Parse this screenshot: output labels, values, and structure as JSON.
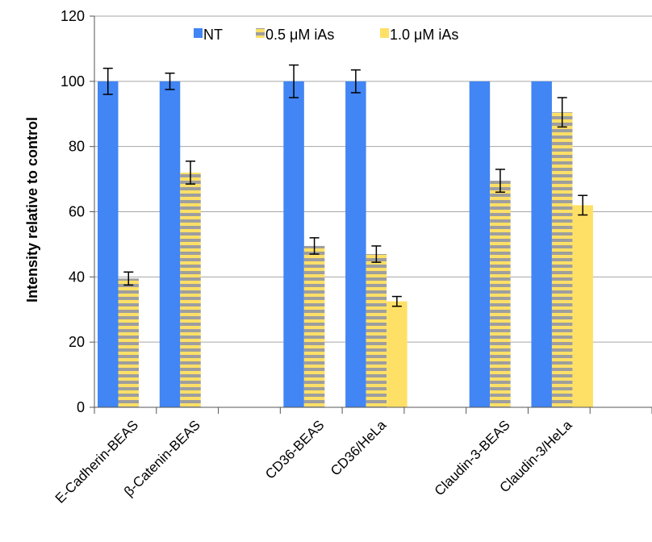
{
  "chart_data": {
    "type": "bar",
    "ylabel": "Intensity relative to control",
    "ylim": [
      0,
      120
    ],
    "yticks": [
      0,
      20,
      40,
      60,
      80,
      100,
      120
    ],
    "grid": true,
    "legend_position": "top",
    "slots": [
      "E-Cadherin-BEAS",
      "β-Catenin-BEAS",
      "",
      "CD36-BEAS",
      "CD36/HeLa",
      "",
      "Claudin-3-BEAS",
      "Claudin-3/HeLa",
      ""
    ],
    "categories": [
      "E-Cadherin-BEAS",
      "β-Catenin-BEAS",
      "CD36-BEAS",
      "CD36/HeLa",
      "Claudin-3-BEAS",
      "Claudin-3/HeLa"
    ],
    "series": [
      {
        "name": "NT",
        "color": "#4285f4",
        "pattern": "solid",
        "values": [
          100,
          100,
          100,
          100,
          100,
          100
        ],
        "errors": [
          4,
          2.5,
          5,
          3.5,
          null,
          null
        ]
      },
      {
        "name": "0.5 μM iAs",
        "color": "#ffe066",
        "stripe_color": "#9e9e9e",
        "pattern": "horizontal-stripes",
        "values": [
          39.5,
          72,
          49.5,
          47,
          69.5,
          90.5
        ],
        "errors": [
          2,
          3.5,
          2.5,
          2.5,
          3.5,
          4.5
        ]
      },
      {
        "name": "1.0 μM iAs",
        "color": "#ffe066",
        "pattern": "solid",
        "values": [
          null,
          null,
          null,
          32.5,
          null,
          62
        ],
        "errors": [
          null,
          null,
          null,
          1.5,
          null,
          3
        ]
      }
    ]
  }
}
